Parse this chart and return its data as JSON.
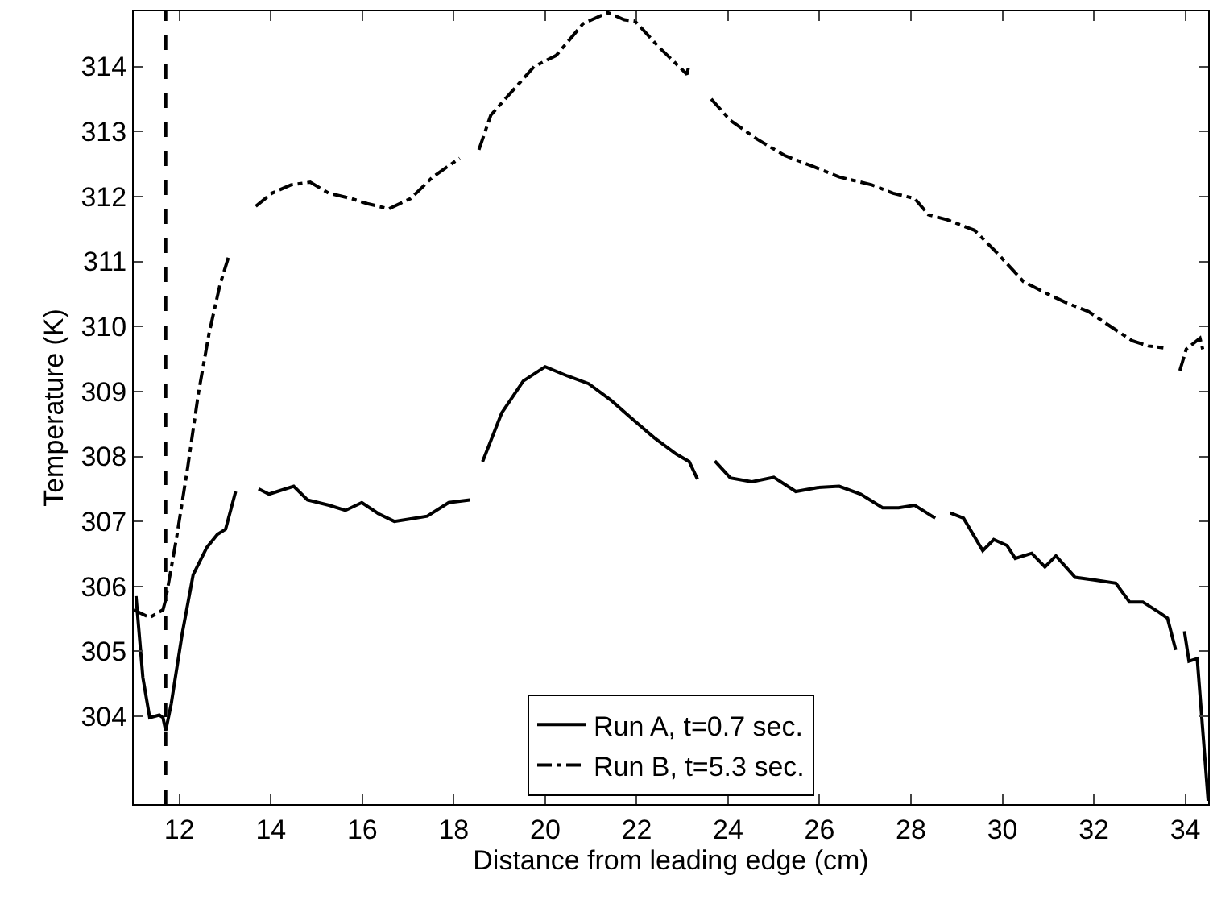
{
  "chart_data": {
    "type": "line",
    "xlabel": "Distance from leading edge (cm)",
    "ylabel": "Temperature (K)",
    "xlim": [
      11,
      34.5
    ],
    "xticks": [
      12,
      14,
      16,
      18,
      20,
      22,
      24,
      26,
      28,
      30,
      32,
      34
    ],
    "ylim": [
      302.65,
      314.85
    ],
    "yticks": [
      304,
      305,
      306,
      307,
      308,
      309,
      310,
      311,
      312,
      313,
      314
    ],
    "grid": false,
    "legend": "bottom",
    "marker": "none",
    "ref_lines": [
      {
        "axis": "x",
        "value": 11.7,
        "color": "#000000",
        "line_style": "dashed"
      }
    ],
    "series": [
      {
        "name": "Run A, t=0.7 sec.",
        "color": "#000000",
        "line_style": "solid",
        "x": [
          11.05,
          11.2,
          11.35,
          11.56,
          11.64,
          11.7,
          11.82,
          12.06,
          12.3,
          12.6,
          12.83,
          13.01,
          13.23,
          13.5,
          13.73,
          13.96,
          14.5,
          14.8,
          15.27,
          15.63,
          15.99,
          16.35,
          16.7,
          17.06,
          17.42,
          17.89,
          18.35,
          18.5,
          18.63,
          19.05,
          19.52,
          20.0,
          20.48,
          20.95,
          21.43,
          21.9,
          22.38,
          22.86,
          23.15,
          23.33,
          23.5,
          23.71,
          24.05,
          24.52,
          25.0,
          25.48,
          25.95,
          26.43,
          26.9,
          27.38,
          27.73,
          28.08,
          28.53,
          28.7,
          28.86,
          29.15,
          29.57,
          29.81,
          30.1,
          30.28,
          30.64,
          30.93,
          31.17,
          31.59,
          32.0,
          32.48,
          32.78,
          33.07,
          33.43,
          33.61,
          33.79,
          33.9,
          33.98,
          34.08,
          34.26,
          34.5
        ],
        "values": [
          305.85,
          304.6,
          303.98,
          304.02,
          303.98,
          303.78,
          304.19,
          305.27,
          306.18,
          306.6,
          306.8,
          306.88,
          307.46,
          null,
          307.5,
          307.42,
          307.54,
          307.33,
          307.25,
          307.17,
          307.29,
          307.12,
          307.0,
          307.04,
          307.08,
          307.29,
          307.33,
          null,
          307.92,
          308.67,
          309.16,
          309.38,
          309.24,
          309.12,
          308.87,
          308.58,
          308.29,
          308.04,
          307.92,
          307.65,
          null,
          307.93,
          307.67,
          307.61,
          307.68,
          307.46,
          307.52,
          307.54,
          307.42,
          307.21,
          307.21,
          307.25,
          307.05,
          null,
          307.13,
          307.05,
          306.55,
          306.72,
          306.63,
          306.43,
          306.51,
          306.3,
          306.47,
          306.14,
          306.1,
          306.05,
          305.76,
          305.76,
          305.6,
          305.51,
          305.02,
          null,
          305.31,
          304.85,
          304.89,
          302.7
        ]
      },
      {
        "name": "Run B, t=5.3 sec.",
        "color": "#000000",
        "line_style": "dashdot",
        "x": [
          11.0,
          11.35,
          11.64,
          11.7,
          11.94,
          12.18,
          12.42,
          12.65,
          12.89,
          13.07,
          13.4,
          13.67,
          14.02,
          14.44,
          14.86,
          15.27,
          15.75,
          16.11,
          16.58,
          17.06,
          17.54,
          18.13,
          18.4,
          18.55,
          18.81,
          19.29,
          19.76,
          20.24,
          20.83,
          21.37,
          21.73,
          21.96,
          22.5,
          23.1,
          23.15,
          23.4,
          23.63,
          24.05,
          24.64,
          25.24,
          25.83,
          26.43,
          27.14,
          27.61,
          28.08,
          28.38,
          28.8,
          29.39,
          29.87,
          30.46,
          30.93,
          31.41,
          31.88,
          32.3,
          32.84,
          33.19,
          33.52,
          33.7,
          33.88,
          34.02,
          34.32,
          34.38
        ],
        "values": [
          305.64,
          305.52,
          305.64,
          305.8,
          306.76,
          307.83,
          308.99,
          309.9,
          310.65,
          311.06,
          null,
          311.85,
          312.05,
          312.18,
          312.22,
          312.05,
          311.97,
          311.89,
          311.81,
          311.97,
          312.3,
          312.59,
          null,
          312.72,
          313.25,
          313.63,
          314.0,
          314.17,
          314.66,
          314.83,
          314.72,
          314.7,
          314.29,
          313.88,
          314.04,
          null,
          313.5,
          313.17,
          312.88,
          312.63,
          312.47,
          312.3,
          312.18,
          312.05,
          311.97,
          311.72,
          311.64,
          311.48,
          311.14,
          310.69,
          310.52,
          310.36,
          310.23,
          310.03,
          309.78,
          309.7,
          309.67,
          null,
          309.32,
          309.65,
          309.82,
          309.65
        ]
      }
    ]
  }
}
